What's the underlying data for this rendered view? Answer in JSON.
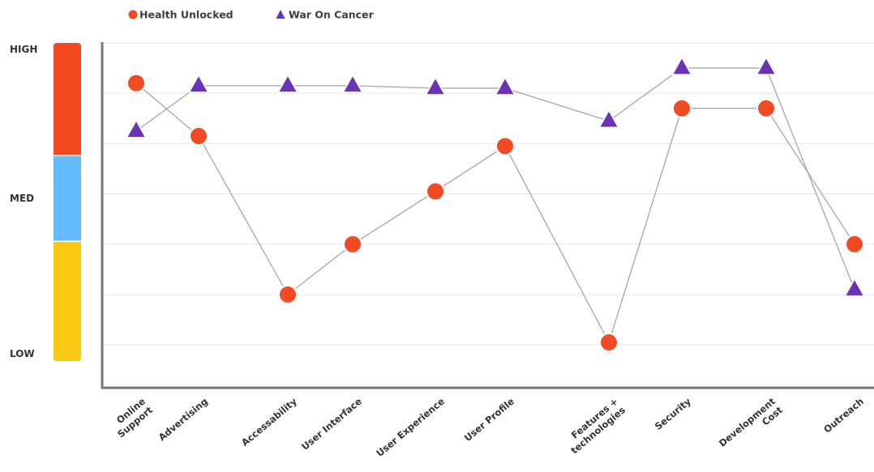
{
  "colors": {
    "health_unlocked": "#f04b24",
    "war_on_cancer": "#6a32b5",
    "level_high": "#f24822",
    "level_med": "#66bbfd",
    "level_low": "#f9c812",
    "line": "#a6a6a6"
  },
  "levels": {
    "high": "HIGH",
    "med": "MED",
    "low": "LOW"
  },
  "chart_data": {
    "type": "line",
    "xlabel": "",
    "ylabel": "",
    "ylim": [
      0,
      6
    ],
    "grid": true,
    "legend": "top-left",
    "categories": [
      [
        "Online",
        "Support"
      ],
      [
        "Advertising"
      ],
      [
        "Accessability"
      ],
      [
        "User Interface"
      ],
      [
        "User Experience"
      ],
      [
        "User Profile"
      ],
      [
        "Features +",
        "technologies"
      ],
      [
        "Security"
      ],
      [
        "Development",
        "Cost"
      ],
      [
        "Outreach"
      ]
    ],
    "series": [
      {
        "name": "Health Unlocked",
        "marker": "circle",
        "values": [
          5.2,
          4.15,
          1.0,
          2.0,
          3.05,
          3.95,
          0.05,
          4.7,
          4.7,
          2.0
        ]
      },
      {
        "name": "War On Cancer",
        "marker": "triangle",
        "values": [
          4.25,
          5.15,
          5.15,
          5.15,
          5.1,
          5.1,
          4.45,
          5.5,
          5.5,
          1.1
        ]
      }
    ]
  }
}
